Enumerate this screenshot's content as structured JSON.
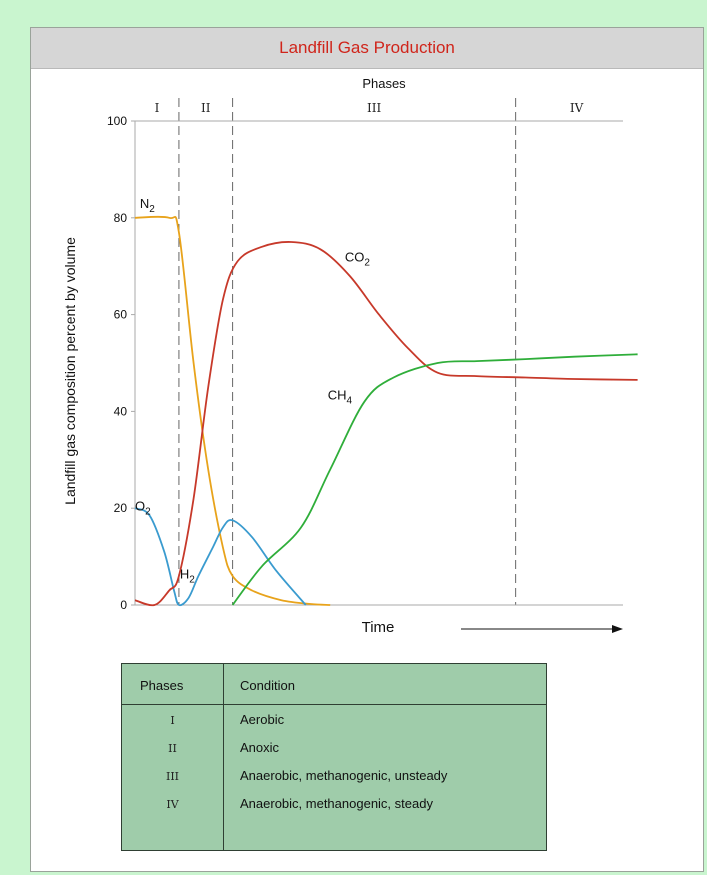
{
  "chart_data": {
    "type": "line",
    "title": "Landfill Gas Production",
    "top_label": "Phases",
    "xlabel": "Time",
    "ylabel": "Landfill gas composition percent by volume",
    "ylim": [
      0,
      100
    ],
    "xlim": [
      0,
      100
    ],
    "y_ticks": [
      "0",
      "20",
      "40",
      "60",
      "80",
      "100"
    ],
    "y_tick_values": [
      0,
      20,
      40,
      60,
      80,
      100
    ],
    "grid": false,
    "phases": [
      {
        "label": "I",
        "start": 0,
        "end": 9
      },
      {
        "label": "II",
        "start": 9,
        "end": 20
      },
      {
        "label": "III",
        "start": 20,
        "end": 78
      },
      {
        "label": "IV",
        "start": 78,
        "end": 103
      }
    ],
    "series": [
      {
        "name": "N2",
        "label_main": "N",
        "label_sub": "2",
        "color": "#e8a31b",
        "points": [
          [
            0,
            80
          ],
          [
            7,
            80
          ],
          [
            9,
            77
          ],
          [
            12,
            50
          ],
          [
            15,
            28
          ],
          [
            18,
            12
          ],
          [
            20,
            6
          ],
          [
            24,
            3
          ],
          [
            30,
            1
          ],
          [
            36,
            0.2
          ],
          [
            40,
            0
          ]
        ]
      },
      {
        "name": "O2",
        "label_main": "O",
        "label_sub": "2",
        "color": "#3a9bcf",
        "points": [
          [
            0,
            20
          ],
          [
            3,
            18.5
          ],
          [
            6,
            11
          ],
          [
            8,
            3
          ],
          [
            9,
            0
          ],
          [
            11,
            1.5
          ],
          [
            13,
            6
          ],
          [
            16,
            12
          ],
          [
            18,
            16
          ],
          [
            20,
            17.5
          ],
          [
            24,
            14
          ],
          [
            29,
            7
          ],
          [
            35,
            0
          ]
        ]
      },
      {
        "name": "H2",
        "label_main": "H",
        "label_sub": "2",
        "color": "#c7392a",
        "points": [
          [
            0,
            1
          ],
          [
            4,
            0
          ],
          [
            7,
            3
          ],
          [
            9,
            6
          ],
          [
            12,
            22
          ],
          [
            15,
            45
          ],
          [
            18,
            63
          ],
          [
            21,
            71
          ],
          [
            26,
            74
          ],
          [
            32,
            75
          ],
          [
            38,
            73.5
          ],
          [
            44,
            68
          ],
          [
            50,
            60
          ],
          [
            56,
            53
          ],
          [
            62,
            48
          ],
          [
            70,
            47.3
          ],
          [
            80,
            47
          ],
          [
            90,
            46.7
          ],
          [
            103,
            46.5
          ]
        ]
      },
      {
        "name": "CH4",
        "label_main": "CH",
        "label_sub": "4",
        "color": "#2fae3a",
        "points": [
          [
            20,
            0
          ],
          [
            26,
            8
          ],
          [
            34,
            16
          ],
          [
            40,
            28
          ],
          [
            47,
            42
          ],
          [
            53,
            47
          ],
          [
            62,
            50
          ],
          [
            70,
            50.4
          ],
          [
            80,
            50.8
          ],
          [
            90,
            51.3
          ],
          [
            103,
            51.8
          ]
        ]
      }
    ],
    "series_labels": [
      {
        "main": "N",
        "sub": "2",
        "x": 1,
        "y": 82,
        "color": "#111"
      },
      {
        "main": "O",
        "sub": "2",
        "x": 0,
        "y": 19.5,
        "color": "#111"
      },
      {
        "main": "H",
        "sub": "2",
        "x": 9.2,
        "y": 5.5,
        "color": "#111"
      },
      {
        "main": "CO",
        "sub": "2",
        "x": 43,
        "y": 71,
        "color": "#111"
      },
      {
        "main": "CH",
        "sub": "4",
        "x": 39.5,
        "y": 42.5,
        "color": "#111"
      }
    ]
  },
  "legend_table": {
    "header_phase": "Phases",
    "header_condition": "Condition",
    "rows": [
      {
        "phase": "I",
        "condition": "Aerobic"
      },
      {
        "phase": "II",
        "condition": "Anoxic"
      },
      {
        "phase": "III",
        "condition": "Anaerobic, methanogenic, unsteady"
      },
      {
        "phase": "IV",
        "condition": "Anaerobic, methanogenic, steady"
      }
    ]
  }
}
